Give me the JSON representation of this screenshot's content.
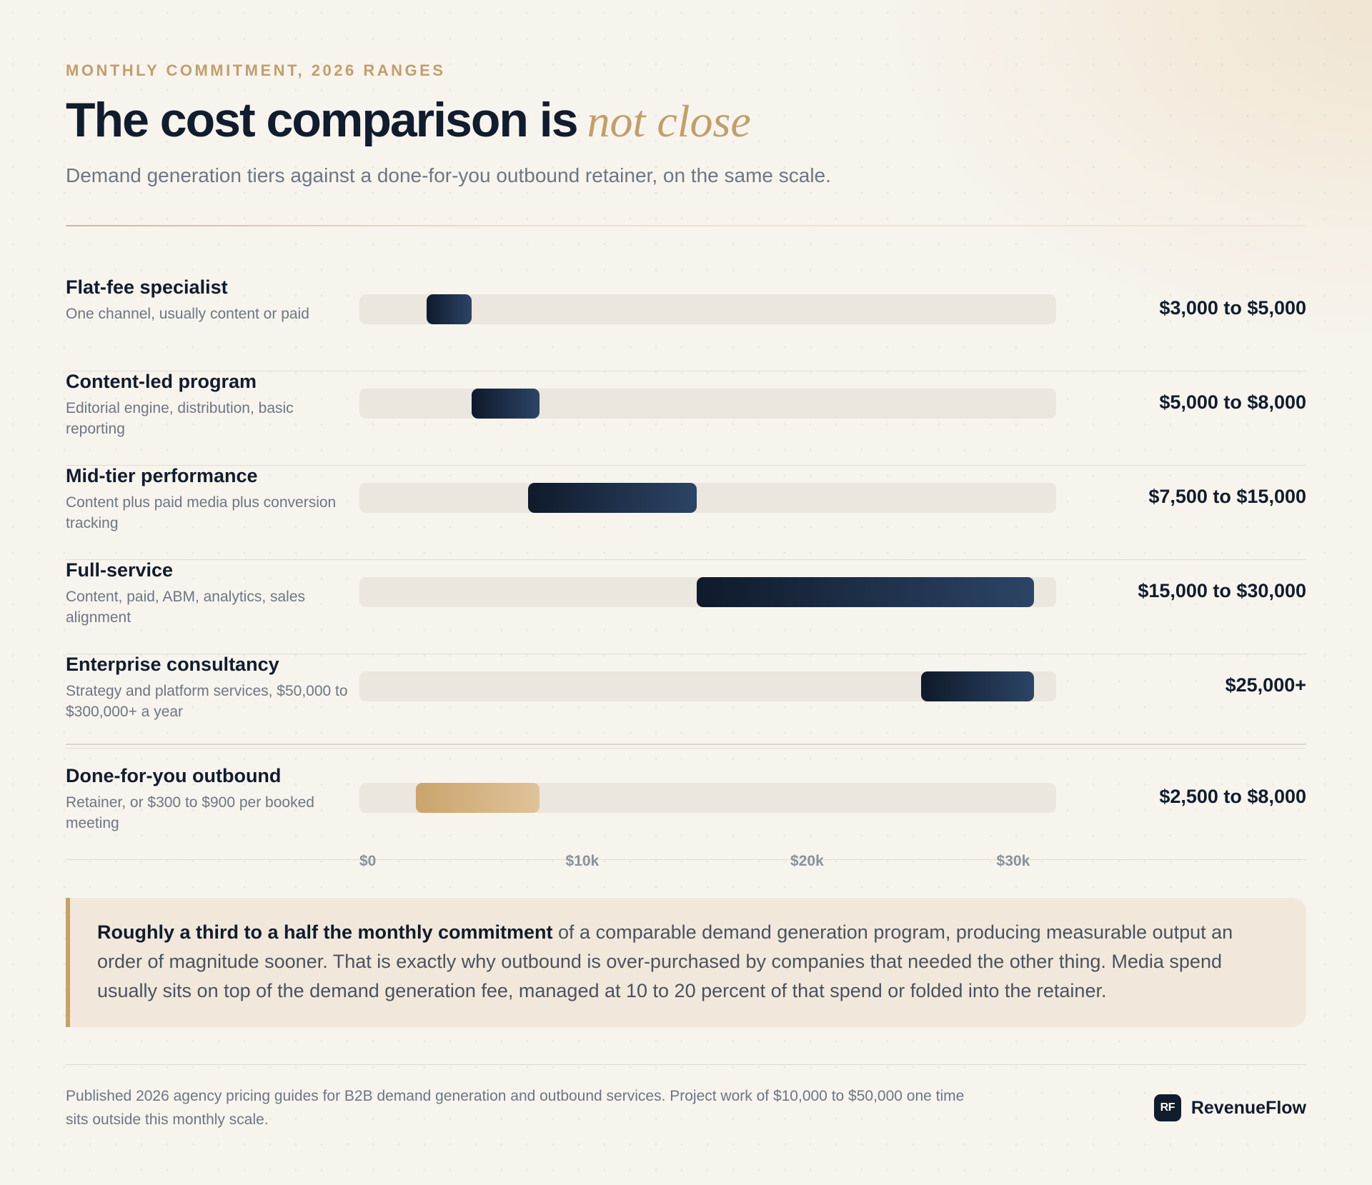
{
  "header": {
    "eyebrow": "MONTHLY COMMITMENT, 2026 RANGES",
    "title_main": "The cost comparison is",
    "title_accent": "not close",
    "subtitle": "Demand generation tiers against a done-for-you outbound retainer, on the same scale."
  },
  "chart_data": {
    "type": "bar",
    "orientation": "horizontal-range",
    "xlim": [
      0,
      31000
    ],
    "ticks": [
      "$0",
      "$10k",
      "$20k",
      "$30k"
    ],
    "tick_values": [
      0,
      10000,
      20000,
      30000
    ],
    "categories": [
      "Flat-fee specialist",
      "Content-led program",
      "Mid-tier performance",
      "Full-service",
      "Enterprise consultancy",
      "Done-for-you outbound"
    ],
    "series": [
      {
        "values": [
          {
            "name": "Flat-fee specialist",
            "desc": "One channel, usually content or paid",
            "low": 3000,
            "high": 5000,
            "label": "$3,000 to $5,000",
            "style": "navy"
          },
          {
            "name": "Content-led program",
            "desc": "Editorial engine, distribution, basic reporting",
            "low": 5000,
            "high": 8000,
            "label": "$5,000 to $8,000",
            "style": "navy"
          },
          {
            "name": "Mid-tier performance",
            "desc": "Content plus paid media plus conversion tracking",
            "low": 7500,
            "high": 15000,
            "label": "$7,500 to $15,000",
            "style": "navy"
          },
          {
            "name": "Full-service",
            "desc": "Content, paid, ABM, analytics, sales alignment",
            "low": 15000,
            "high": 30000,
            "label": "$15,000 to $30,000",
            "style": "navy"
          },
          {
            "name": "Enterprise consultancy",
            "desc": "Strategy and platform services, $50,000 to $300,000+ a year",
            "low": 25000,
            "high": 30000,
            "label": "$25,000+",
            "style": "navy"
          },
          {
            "name": "Done-for-you outbound",
            "desc": "Retainer, or $300 to $900 per booked meeting",
            "low": 2500,
            "high": 8000,
            "label": "$2,500 to $8,000",
            "style": "gold"
          }
        ]
      }
    ]
  },
  "callout": {
    "lead": "Roughly a third to a half the monthly commitment",
    "body": " of a comparable demand generation program, producing measurable output an order of magnitude sooner. That is exactly why outbound is over-purchased by companies that needed the other thing. Media spend usually sits on top of the demand generation fee, managed at 10 to 20 percent of that spend or folded into the retainer."
  },
  "footer": {
    "note": "Published 2026 agency pricing guides for B2B demand generation and outbound services. Project work of $10,000 to $50,000 one time sits outside this monthly scale.",
    "brand_mark": "RF",
    "brand_name": "RevenueFlow"
  },
  "colors": {
    "navy_start": "#0f1a2b",
    "navy_end": "#2c4466",
    "gold_start": "#c9a46b",
    "gold_end": "#e1c39a",
    "accent": "#c29e6b",
    "ink": "#111c2d"
  }
}
